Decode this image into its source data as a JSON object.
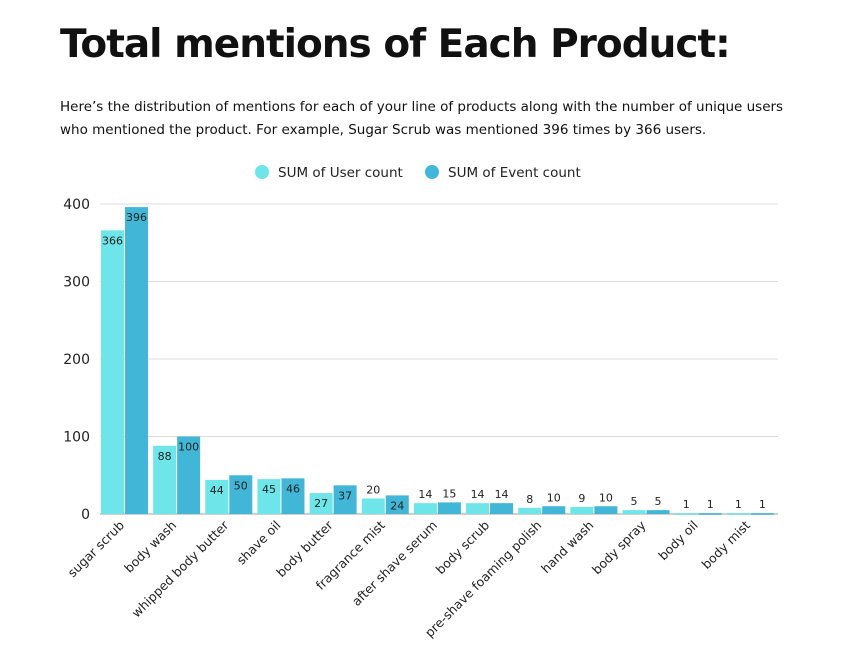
{
  "header": {
    "title": "Total mentions of Each Product:",
    "description": "Here’s the distribution of mentions for each of your line of products along with the number of unique users who mentioned the product. For example, Sugar Scrub was mentioned 396 times by 366 users."
  },
  "chart_data": {
    "type": "bar",
    "categories": [
      "sugar scrub",
      "body wash",
      "whipped body butter",
      "shave oil",
      "body butter",
      "fragrance mist",
      "after shave serum",
      "body scrub",
      "pre-shave foaming polish",
      "hand wash",
      "body spray",
      "body oil",
      "body mist"
    ],
    "series": [
      {
        "name": "SUM of User count",
        "color": "#6ee5e8",
        "values": [
          366,
          88,
          44,
          45,
          27,
          20,
          14,
          14,
          8,
          9,
          5,
          1,
          1
        ]
      },
      {
        "name": "SUM of Event count",
        "color": "#42b6d6",
        "values": [
          396,
          100,
          50,
          46,
          37,
          24,
          15,
          14,
          10,
          10,
          5,
          1,
          1
        ]
      }
    ],
    "yticks": [
      0,
      100,
      200,
      300,
      400
    ],
    "ylim": [
      0,
      400
    ],
    "grid": true,
    "legend": "top",
    "data_labels": true
  }
}
